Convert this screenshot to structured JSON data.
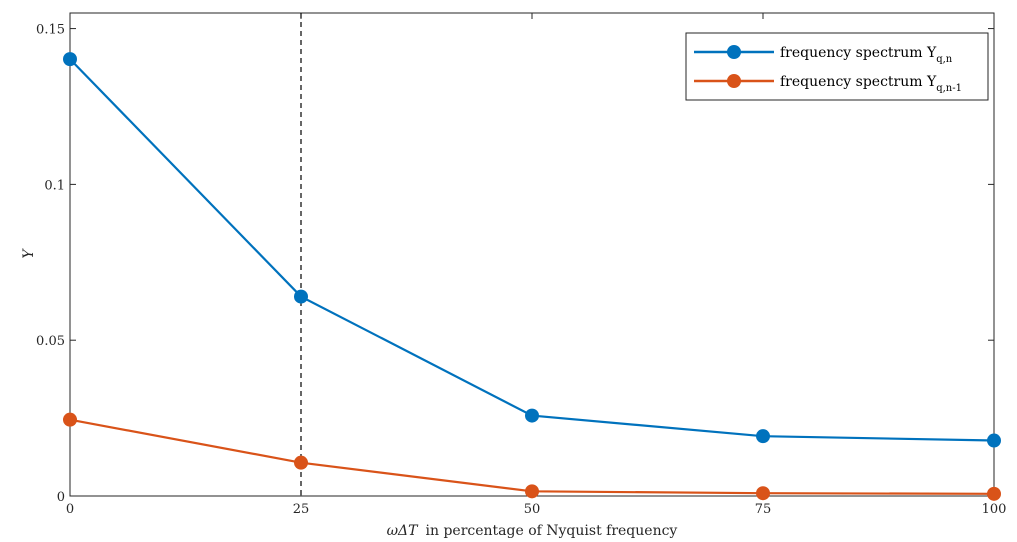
{
  "chart_data": {
    "type": "line",
    "x": [
      0,
      25,
      50,
      75,
      100
    ],
    "series": [
      {
        "label_base": "frequency spectrum Y",
        "label_sub": "q,n",
        "color": "#0072BD",
        "values": [
          0.1402,
          0.064,
          0.0258,
          0.0192,
          0.0178
        ]
      },
      {
        "label_base": "frequency spectrum Y",
        "label_sub": "q,n-1",
        "color": "#D95319",
        "values": [
          0.0245,
          0.0107,
          0.0015,
          0.0009,
          0.0007
        ]
      }
    ],
    "xlim": [
      0,
      100
    ],
    "ylim": [
      0,
      0.155
    ],
    "xticks": [
      "0",
      "25",
      "50",
      "75",
      "100"
    ],
    "yticks": [
      "0",
      "0.05",
      "0.1",
      "0.15"
    ],
    "xtick_values": [
      0,
      25,
      50,
      75,
      100
    ],
    "ytick_values": [
      0,
      0.05,
      0.1,
      0.15
    ],
    "xlabel_symbol": "ωΔT",
    "xlabel_text": "in percentage of Nyquist frequency",
    "ylabel": "Y",
    "vline_x": 25,
    "vline_style": "dashed",
    "legend_position": "top-right",
    "grid": false
  }
}
